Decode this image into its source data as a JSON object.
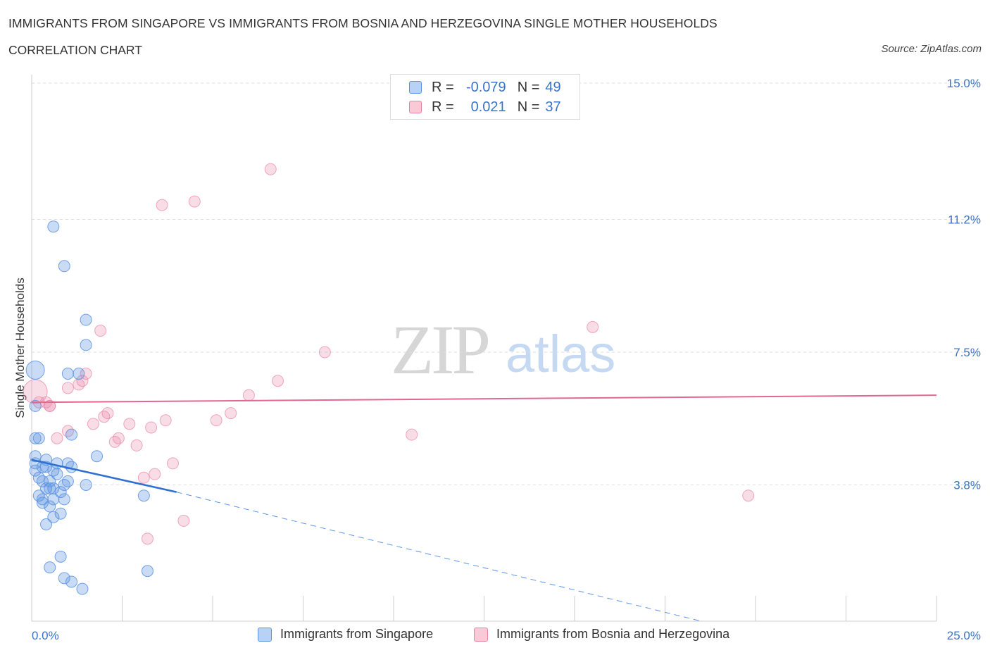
{
  "header": {
    "title": "IMMIGRANTS FROM SINGAPORE VS IMMIGRANTS FROM BOSNIA AND HERZEGOVINA SINGLE MOTHER HOUSEHOLDS",
    "subtitle": "CORRELATION CHART",
    "source": "Source: ZipAtlas.com"
  },
  "legend": {
    "row1": {
      "r_label": "R =",
      "r_value": "-0.079",
      "n_label": "N =",
      "n_value": "49"
    },
    "row2": {
      "r_label": "R =",
      "r_value": "0.021",
      "n_label": "N =",
      "n_value": "37"
    }
  },
  "colors": {
    "singapore": "#5b93e0",
    "bosnia": "#ea84a6",
    "axis_label": "#3a74c8",
    "grid": "#dddddd"
  },
  "watermark": {
    "zip": "ZIP",
    "atlas": "atlas"
  },
  "chart_data": {
    "type": "scatter",
    "ylabel": "Single Mother Households",
    "xlim": [
      0,
      25
    ],
    "ylim": [
      0,
      15
    ],
    "x_tick_labels": [
      "0.0%",
      "25.0%"
    ],
    "y_ticks": [
      3.8,
      7.5,
      11.2,
      15.0
    ],
    "y_tick_labels": [
      "3.8%",
      "7.5%",
      "11.2%",
      "15.0%"
    ],
    "grid": "horizontal dashed",
    "series": [
      {
        "name": "Immigrants from Singapore",
        "color": "#5b93e0",
        "trend": {
          "x": [
            0,
            4
          ],
          "y": [
            4.5,
            3.6
          ]
        },
        "trend_extension": {
          "x": [
            4,
            18.5
          ],
          "y": [
            3.6,
            0
          ]
        },
        "points": [
          [
            0.6,
            11.0
          ],
          [
            0.9,
            9.9
          ],
          [
            1.5,
            8.4
          ],
          [
            1.5,
            7.7
          ],
          [
            1.0,
            6.9
          ],
          [
            1.3,
            6.9
          ],
          [
            0.1,
            7.0
          ],
          [
            0.1,
            6.0
          ],
          [
            0.1,
            5.1
          ],
          [
            0.2,
            5.1
          ],
          [
            1.1,
            5.2
          ],
          [
            0.1,
            4.6
          ],
          [
            0.1,
            4.2
          ],
          [
            0.3,
            4.3
          ],
          [
            0.4,
            4.3
          ],
          [
            0.7,
            4.4
          ],
          [
            1.0,
            4.4
          ],
          [
            1.1,
            4.3
          ],
          [
            1.8,
            4.6
          ],
          [
            0.7,
            4.1
          ],
          [
            0.3,
            3.9
          ],
          [
            0.5,
            3.9
          ],
          [
            0.4,
            3.7
          ],
          [
            0.5,
            3.7
          ],
          [
            0.6,
            3.7
          ],
          [
            0.9,
            3.8
          ],
          [
            1.5,
            3.8
          ],
          [
            0.2,
            3.5
          ],
          [
            0.3,
            3.4
          ],
          [
            0.6,
            3.4
          ],
          [
            0.9,
            3.4
          ],
          [
            0.5,
            3.2
          ],
          [
            0.8,
            3.0
          ],
          [
            0.6,
            2.9
          ],
          [
            0.4,
            2.7
          ],
          [
            3.1,
            3.5
          ],
          [
            0.8,
            1.8
          ],
          [
            0.5,
            1.5
          ],
          [
            0.9,
            1.2
          ],
          [
            1.1,
            1.1
          ],
          [
            1.4,
            0.9
          ],
          [
            3.2,
            1.4
          ],
          [
            0.4,
            4.5
          ],
          [
            0.2,
            4.0
          ],
          [
            1.0,
            3.9
          ],
          [
            0.3,
            3.3
          ],
          [
            0.8,
            3.6
          ],
          [
            0.6,
            4.2
          ],
          [
            0.1,
            4.4
          ]
        ]
      },
      {
        "name": "Immigrants from Bosnia and Herzegovina",
        "color": "#ea84a6",
        "trend": {
          "x": [
            0,
            25
          ],
          "y": [
            6.1,
            6.3
          ]
        },
        "points": [
          [
            6.6,
            12.6
          ],
          [
            3.6,
            11.6
          ],
          [
            4.5,
            11.7
          ],
          [
            1.9,
            8.1
          ],
          [
            15.5,
            8.2
          ],
          [
            8.1,
            7.5
          ],
          [
            1.5,
            6.9
          ],
          [
            1.3,
            6.6
          ],
          [
            1.4,
            6.7
          ],
          [
            1.0,
            6.5
          ],
          [
            6.8,
            6.7
          ],
          [
            6.0,
            6.3
          ],
          [
            0.1,
            6.4
          ],
          [
            0.2,
            6.1
          ],
          [
            0.4,
            6.1
          ],
          [
            0.5,
            6.0
          ],
          [
            2.1,
            5.8
          ],
          [
            5.5,
            5.8
          ],
          [
            2.0,
            5.7
          ],
          [
            5.1,
            5.6
          ],
          [
            2.7,
            5.5
          ],
          [
            3.7,
            5.6
          ],
          [
            1.7,
            5.5
          ],
          [
            1.0,
            5.3
          ],
          [
            3.3,
            5.4
          ],
          [
            0.7,
            5.1
          ],
          [
            2.4,
            5.1
          ],
          [
            2.3,
            5.0
          ],
          [
            2.9,
            4.9
          ],
          [
            10.5,
            5.2
          ],
          [
            3.9,
            4.4
          ],
          [
            3.4,
            4.1
          ],
          [
            3.1,
            4.0
          ],
          [
            19.8,
            3.5
          ],
          [
            4.2,
            2.8
          ],
          [
            3.2,
            2.3
          ],
          [
            0.5,
            6.0
          ]
        ]
      }
    ],
    "bottom_legend": [
      "Immigrants from Singapore",
      "Immigrants from Bosnia and Herzegovina"
    ]
  }
}
